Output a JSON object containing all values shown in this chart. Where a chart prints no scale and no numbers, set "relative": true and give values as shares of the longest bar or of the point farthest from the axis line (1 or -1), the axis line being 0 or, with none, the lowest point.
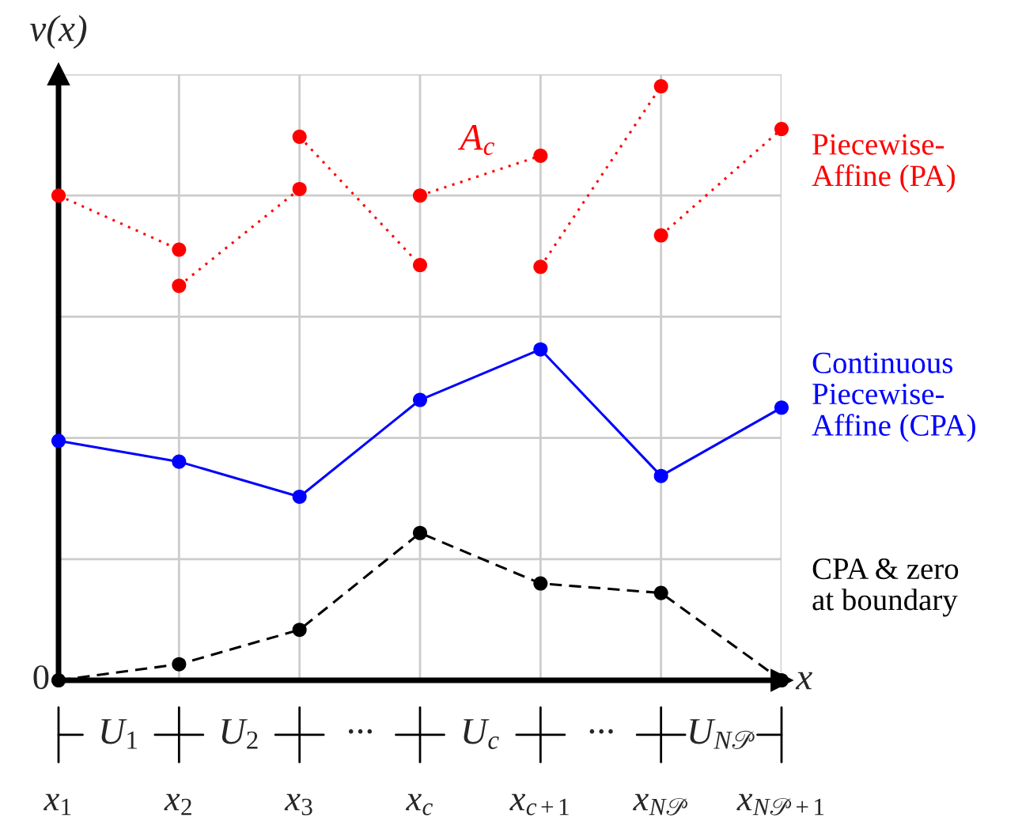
{
  "chart_data": {
    "type": "line",
    "relative": true,
    "ylabel": "v(x)",
    "xlabel": "x",
    "x": [
      1,
      2,
      3,
      4,
      5,
      6,
      7
    ],
    "xlim": [
      1,
      7
    ],
    "xticks": [
      {
        "value": 1,
        "label": "x$_{1}$"
      },
      {
        "value": 2,
        "label": "x$_{2}$"
      },
      {
        "value": 3,
        "label": "x$_{3}$"
      },
      {
        "value": 4,
        "label": "x$_{c}$"
      },
      {
        "value": 5,
        "label": "x$_{c+1}$"
      },
      {
        "value": 6,
        "label": "x$_{N𝒫}$"
      },
      {
        "value": 7,
        "label": "x$_{N𝒫+1}$"
      }
    ],
    "grid": true,
    "marker": "circle",
    "series": [
      {
        "color": "#ff0000",
        "line_style": "dotted",
        "x": [
          1,
          2
        ],
        "values": [
          0.816,
          0.725
        ]
      },
      {
        "color": "#ff0000",
        "line_style": "dotted",
        "x": [
          2,
          3
        ],
        "values": [
          0.664,
          0.827
        ]
      },
      {
        "color": "#ff0000",
        "line_style": "dotted",
        "x": [
          3,
          4
        ],
        "values": [
          0.915,
          0.699
        ]
      },
      {
        "color": "#ff0000",
        "line_style": "dotted",
        "x": [
          4,
          5
        ],
        "values": [
          0.816,
          0.883
        ]
      },
      {
        "color": "#ff0000",
        "line_style": "dotted",
        "x": [
          5,
          6
        ],
        "values": [
          0.696,
          1.0
        ]
      },
      {
        "name": "Piecewise-\nAffine (PA)",
        "color": "#ff0000",
        "line_style": "dotted",
        "x": [
          6,
          7
        ],
        "values": [
          0.749,
          0.928
        ]
      },
      {
        "name": "Continuous\nPiecewise-\nAffine (CPA)",
        "color": "#0000ff",
        "line_style": "solid",
        "values": [
          0.403,
          0.368,
          0.309,
          0.472,
          0.557,
          0.344,
          0.459
        ]
      },
      {
        "name": "CPA & zero\nat boundary",
        "color": "#000000",
        "line_style": "dashed",
        "values": [
          0,
          0.027,
          0.085,
          0.248,
          0.163,
          0.147,
          0
        ]
      }
    ],
    "annotations": [
      "A$_{c}$",
      "0",
      "U$_{1}$",
      "U$_{2}$",
      "···",
      "U$_{c}$",
      "···",
      "U$_{N𝒫}$"
    ]
  }
}
